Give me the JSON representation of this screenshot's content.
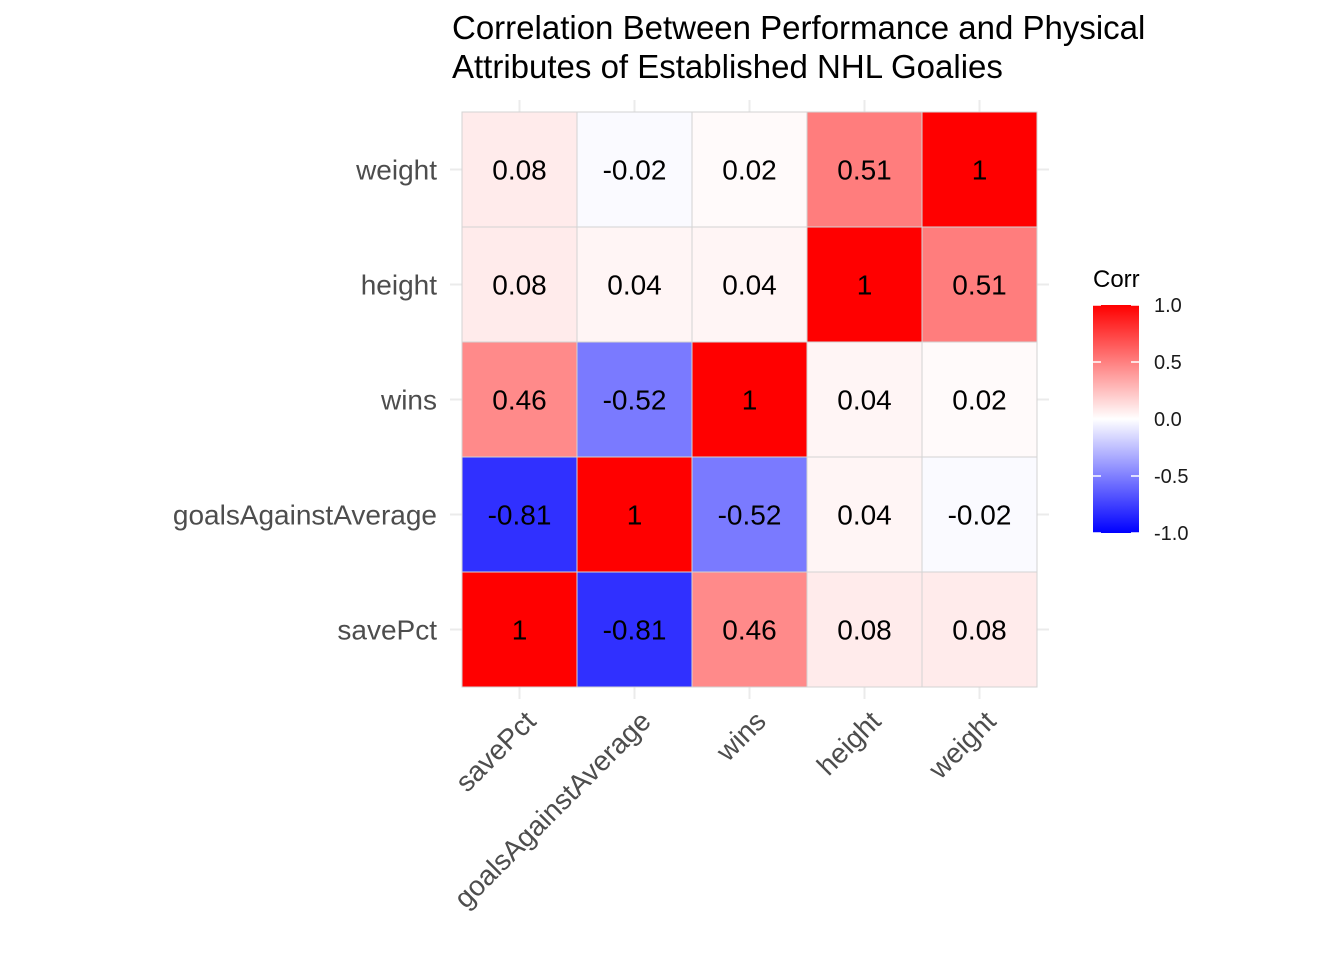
{
  "chart_data": {
    "type": "heatmap",
    "title_lines": [
      "Correlation Between Performance and Physical",
      "Attributes of Established NHL Goalies"
    ],
    "x_categories": [
      "savePct",
      "goalsAgainstAverage",
      "wins",
      "height",
      "weight"
    ],
    "y_categories": [
      "savePct",
      "goalsAgainstAverage",
      "wins",
      "height",
      "weight"
    ],
    "matrix": [
      [
        1,
        -0.81,
        0.46,
        0.08,
        0.08
      ],
      [
        -0.81,
        1,
        -0.52,
        0.04,
        -0.02
      ],
      [
        0.46,
        -0.52,
        1,
        0.04,
        0.02
      ],
      [
        0.08,
        0.04,
        0.04,
        1,
        0.51
      ],
      [
        0.08,
        -0.02,
        0.02,
        0.51,
        1
      ]
    ],
    "labels": [
      [
        "1",
        "-0.81",
        "0.46",
        "0.08",
        "0.08"
      ],
      [
        "-0.81",
        "1",
        "-0.52",
        "0.04",
        "-0.02"
      ],
      [
        "0.46",
        "-0.52",
        "1",
        "0.04",
        "0.02"
      ],
      [
        "0.08",
        "0.04",
        "0.04",
        "1",
        "0.51"
      ],
      [
        "0.08",
        "-0.02",
        "0.02",
        "0.51",
        "1"
      ]
    ],
    "legend": {
      "title": "Corr",
      "placement": "right",
      "ticks": [
        "1.0",
        "0.5",
        "0.0",
        "-0.5",
        "-1.0"
      ],
      "tick_values": [
        1.0,
        0.5,
        0.0,
        -0.5,
        -1.0
      ],
      "range": [
        -1,
        1
      ]
    },
    "colors": {
      "low": "#0000FF",
      "mid": "#FFFFFF",
      "high": "#FF0000"
    },
    "grid": true
  }
}
